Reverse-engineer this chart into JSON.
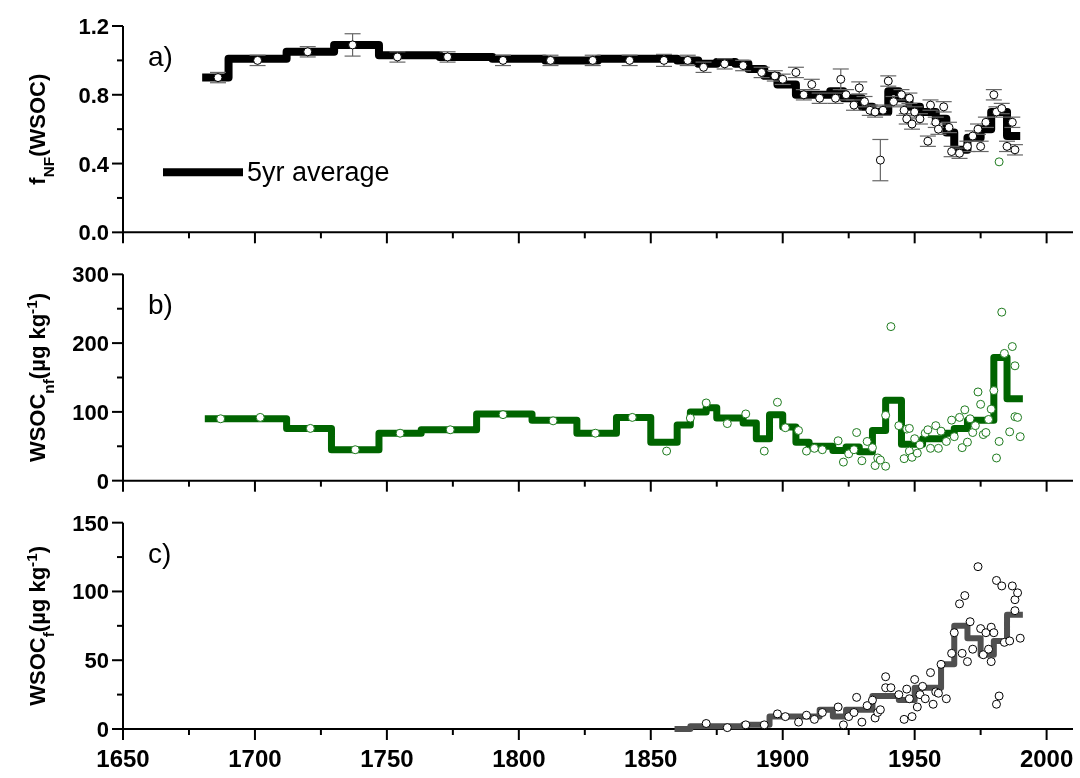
{
  "chart_data": [
    {
      "type": "scatter",
      "ylabel": "f$_{NF}$(WSOC)",
      "annotations": [
        "a)"
      ],
      "xlim": [
        1650,
        2010
      ],
      "ylim": [
        0,
        1.2
      ],
      "tick_labels": "y",
      "legend": "bottom left",
      "xticks": [
        1650,
        {
          "value": 1675,
          "label": null
        },
        1700,
        {
          "value": 1725,
          "label": null
        },
        1750,
        {
          "value": 1775,
          "label": null
        },
        1800,
        {
          "value": 1825,
          "label": null
        },
        1850,
        {
          "value": 1875,
          "label": null
        },
        1900,
        {
          "value": 1925,
          "label": null
        },
        1950,
        {
          "value": 1975,
          "label": null
        },
        2000
      ],
      "yticks": [
        {
          "value": 0,
          "label": "0.0"
        },
        {
          "value": 0.2,
          "label": null
        },
        {
          "value": 0.4,
          "label": "0.4"
        },
        {
          "value": 0.6,
          "label": null
        },
        {
          "value": 0.8,
          "label": "0.8"
        },
        {
          "value": 1.0,
          "label": null
        },
        {
          "value": 1.2,
          "label": "1.2"
        }
      ],
      "series": [
        {
          "type": "step",
          "name": "5yr average",
          "color": "#000000",
          "x": [
            1680,
            1690,
            1712,
            1730,
            1747,
            1770,
            1790,
            1810,
            1830,
            1860,
            1868,
            1875,
            1882,
            1887,
            1893,
            1898,
            1905,
            1918,
            1923,
            1930,
            1934,
            1940,
            1944,
            1948,
            1952,
            1958,
            1962,
            1965,
            1970,
            1975,
            1979,
            1985,
            1990
          ],
          "values": [
            0.9,
            1.01,
            1.05,
            1.09,
            1.03,
            1.02,
            1.01,
            1.0,
            1.01,
            1.0,
            0.98,
            0.99,
            0.98,
            0.95,
            0.91,
            0.86,
            0.8,
            0.82,
            0.78,
            0.73,
            0.7,
            0.82,
            0.78,
            0.73,
            0.7,
            0.66,
            0.58,
            0.48,
            0.55,
            0.6,
            0.7,
            0.56,
            0.56
          ]
        },
        {
          "marker": "circle",
          "color": "#000000",
          "x": [
            1686,
            1701,
            1720,
            1737,
            1754,
            1773,
            1794,
            1812,
            1828,
            1842,
            1855,
            1864,
            1870,
            1878,
            1885,
            1892,
            1897,
            1900,
            1905,
            1908,
            1911,
            1914,
            1920,
            1922,
            1924,
            1927,
            1929,
            1931,
            1933,
            1935,
            1937,
            1938,
            1940,
            1942,
            1945,
            1946,
            1947,
            1948,
            1949,
            1950,
            1952,
            1955,
            1956,
            1958,
            1959,
            1961,
            1963,
            1964,
            1967,
            1970,
            1972,
            1974,
            1975,
            1977,
            1980,
            1981,
            1983,
            1985,
            1987,
            1988
          ],
          "values": [
            0.9,
            1.0,
            1.05,
            1.09,
            1.02,
            1.02,
            1.0,
            1.0,
            1.0,
            1.0,
            1.0,
            1.0,
            0.96,
            0.98,
            0.97,
            0.93,
            0.91,
            0.89,
            0.93,
            0.8,
            0.86,
            0.78,
            0.78,
            0.89,
            0.8,
            0.74,
            0.84,
            0.76,
            0.71,
            0.7,
            0.42,
            0.71,
            0.88,
            0.76,
            0.8,
            0.71,
            0.66,
            0.78,
            0.63,
            0.7,
            0.66,
            0.53,
            0.74,
            0.64,
            0.6,
            0.73,
            0.61,
            0.47,
            0.46,
            0.5,
            0.56,
            0.6,
            0.5,
            0.64,
            0.8,
            0.7,
            0.72,
            0.5,
            0.64,
            0.48
          ],
          "errors": [
            0.03,
            0.03,
            0.03,
            0.065,
            0.03,
            0.03,
            0.03,
            0.03,
            0.03,
            0.03,
            0.035,
            0.03,
            0.03,
            0.03,
            0.03,
            0.03,
            0.03,
            0.03,
            0.03,
            0.03,
            0.03,
            0.03,
            0.03,
            0.06,
            0.03,
            0.03,
            0.035,
            0.03,
            0.03,
            0.03,
            0.12,
            0.03,
            0.03,
            0.03,
            0.03,
            0.03,
            0.03,
            0.03,
            0.03,
            0.03,
            0.03,
            0.03,
            0.03,
            0.03,
            0.03,
            0.03,
            0.03,
            0.03,
            0.03,
            0.03,
            0.03,
            0.03,
            0.03,
            0.03,
            0.03,
            0.03,
            0.03,
            0.03,
            0.03,
            0.03
          ]
        },
        {
          "marker": "circle",
          "color": "#1e7b1e",
          "x": [
            1982
          ],
          "values": [
            0.41
          ]
        }
      ]
    },
    {
      "type": "scatter",
      "ylabel": "WSOC$_{nf}$(µg kg$^{-1}$)",
      "annotations": [
        "b)"
      ],
      "xlim": [
        1650,
        2010
      ],
      "ylim": [
        0,
        300
      ],
      "tick_labels": "y",
      "xticks": [
        1650,
        {
          "value": 1675,
          "label": null
        },
        1700,
        {
          "value": 1725,
          "label": null
        },
        1750,
        {
          "value": 1775,
          "label": null
        },
        1800,
        {
          "value": 1825,
          "label": null
        },
        1850,
        {
          "value": 1875,
          "label": null
        },
        1900,
        {
          "value": 1925,
          "label": null
        },
        1950,
        {
          "value": 1975,
          "label": null
        },
        2000
      ],
      "yticks": [
        0,
        {
          "value": 50,
          "label": null
        },
        100,
        {
          "value": 150,
          "label": null
        },
        200,
        {
          "value": 250,
          "label": null
        },
        300
      ],
      "series": [
        {
          "type": "step",
          "color": "#006400",
          "x": [
            1681,
            1712,
            1729,
            1747,
            1763,
            1784,
            1805,
            1822,
            1837,
            1850,
            1860,
            1865,
            1871,
            1875,
            1885,
            1890,
            1895,
            1900,
            1905,
            1910,
            1919,
            1924,
            1929,
            1934,
            1939,
            1945,
            1953,
            1961,
            1965,
            1970,
            1980,
            1985,
            1991
          ],
          "values": [
            90,
            76,
            45,
            69,
            74,
            97,
            88,
            69,
            92,
            56,
            81,
            100,
            106,
            91,
            84,
            61,
            96,
            78,
            56,
            50,
            44,
            49,
            42,
            73,
            117,
            53,
            61,
            69,
            76,
            88,
            179,
            119,
            119
          ]
        },
        {
          "marker": "circle",
          "color": "#1e7b1e",
          "x": [
            1687,
            1702,
            1721,
            1738,
            1755,
            1774,
            1794,
            1813,
            1829,
            1843,
            1856,
            1865,
            1871,
            1879,
            1886,
            1893,
            1898,
            1901,
            1906,
            1909,
            1912,
            1915,
            1921,
            1923,
            1925,
            1927,
            1928,
            1930,
            1932,
            1934,
            1935,
            1936,
            1937,
            1939,
            1939,
            1941,
            1944,
            1946,
            1947,
            1948,
            1948,
            1949,
            1950,
            1951,
            1952,
            1954,
            1955,
            1956,
            1958,
            1959,
            1960,
            1962,
            1964,
            1965,
            1967,
            1968,
            1969,
            1970,
            1971,
            1972,
            1973,
            1974,
            1975,
            1976,
            1977,
            1978,
            1979,
            1980,
            1981,
            1982,
            1983,
            1984,
            1986,
            1987,
            1988,
            1988,
            1989,
            1990
          ],
          "values": [
            90,
            92,
            76,
            45,
            69,
            74,
            96,
            87,
            69,
            92,
            43,
            91,
            113,
            83,
            97,
            43,
            114,
            77,
            73,
            43,
            47,
            45,
            58,
            27,
            39,
            45,
            70,
            29,
            57,
            48,
            22,
            33,
            30,
            21,
            95,
            224,
            80,
            32,
            75,
            76,
            43,
            34,
            61,
            40,
            52,
            69,
            74,
            47,
            80,
            47,
            72,
            57,
            88,
            64,
            92,
            48,
            103,
            56,
            90,
            70,
            80,
            129,
            111,
            67,
            70,
            89,
            104,
            131,
            33,
            57,
            245,
            185,
            71,
            195,
            167,
            93,
            92,
            64
          ]
        }
      ]
    },
    {
      "type": "scatter",
      "ylabel": "WSOC$_{f}$(µg kg$^{-1}$)",
      "annotations": [
        "c)"
      ],
      "xlim": [
        1650,
        2010
      ],
      "ylim": [
        0,
        150
      ],
      "xticks": [
        1650,
        {
          "value": 1675,
          "label": null
        },
        1700,
        {
          "value": 1725,
          "label": null
        },
        1750,
        {
          "value": 1775,
          "label": null
        },
        1800,
        {
          "value": 1825,
          "label": null
        },
        1850,
        {
          "value": 1875,
          "label": null
        },
        1900,
        {
          "value": 1925,
          "label": null
        },
        1950,
        {
          "value": 1975,
          "label": null
        },
        2000
      ],
      "yticks": [
        0,
        {
          "value": 25,
          "label": null
        },
        50,
        {
          "value": 75,
          "label": null
        },
        100,
        {
          "value": 125,
          "label": null
        },
        150
      ],
      "series": [
        {
          "type": "step",
          "color": "#505050",
          "x": [
            1859,
            1865,
            1885,
            1895,
            1914,
            1919,
            1924,
            1934,
            1944,
            1950,
            1960,
            1965,
            1970,
            1975,
            1980,
            1985,
            1991
          ],
          "values": [
            0,
            2,
            3,
            9,
            14,
            9,
            14,
            24,
            21,
            30,
            47,
            75,
            66,
            54,
            64,
            83,
            83
          ]
        },
        {
          "marker": "circle",
          "color": "#000000",
          "x": [
            1871,
            1879,
            1886,
            1893,
            1898,
            1901,
            1906,
            1909,
            1912,
            1915,
            1921,
            1923,
            1925,
            1927,
            1928,
            1930,
            1932,
            1934,
            1935,
            1936,
            1937,
            1939,
            1939,
            1941,
            1944,
            1946,
            1947,
            1948,
            1949,
            1950,
            1951,
            1952,
            1953,
            1954,
            1956,
            1957,
            1958,
            1959,
            1960,
            1962,
            1964,
            1965,
            1967,
            1968,
            1969,
            1970,
            1971,
            1972,
            1974,
            1975,
            1976,
            1977,
            1978,
            1979,
            1979,
            1980,
            1981,
            1981,
            1982,
            1983,
            1984,
            1986,
            1987,
            1988,
            1988,
            1989,
            1990
          ],
          "values": [
            4,
            1,
            3,
            3,
            11,
            9,
            5,
            10,
            7,
            12,
            16,
            3,
            9,
            12,
            23,
            5,
            17,
            21,
            8,
            12,
            14,
            30,
            38,
            30,
            25,
            7,
            29,
            22,
            9,
            36,
            16,
            25,
            31,
            22,
            41,
            18,
            27,
            26,
            47,
            22,
            55,
            70,
            91,
            55,
            97,
            49,
            78,
            58,
            118,
            73,
            54,
            70,
            58,
            49,
            74,
            70,
            18,
            108,
            24,
            104,
            63,
            64,
            104,
            94,
            86,
            99,
            66
          ]
        }
      ]
    }
  ]
}
